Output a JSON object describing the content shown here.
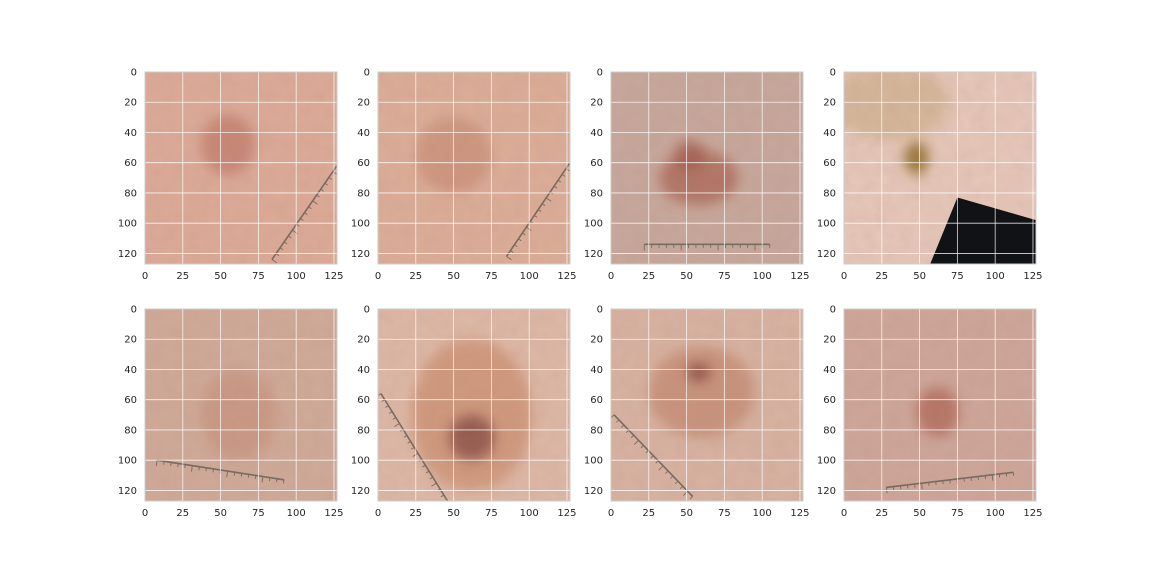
{
  "figure": {
    "grid": true,
    "layout": {
      "rows": 2,
      "cols": 4
    },
    "x_tick_labels": [
      "0",
      "25",
      "50",
      "75",
      "100",
      "125"
    ],
    "y_tick_labels": [
      "0",
      "20",
      "40",
      "60",
      "80",
      "100",
      "120"
    ],
    "x_tick_values": [
      0,
      25,
      50,
      75,
      100,
      125
    ],
    "y_tick_values": [
      0,
      20,
      40,
      60,
      80,
      100,
      120
    ],
    "image_extent": {
      "x": [
        0,
        127
      ],
      "y": [
        0,
        127
      ]
    },
    "colors": {
      "grid": "#ffffff",
      "tick_text": "#262626",
      "frame": "#cccccc"
    }
  },
  "panels": [
    {
      "name": "dermoscopy-image-1",
      "skin_color": "#dcab98",
      "lesions": [
        {
          "cx": 55,
          "cy": 48,
          "rx": 18,
          "ry": 20,
          "color": "#b86a58",
          "opacity": 0.55
        }
      ],
      "ruler": {
        "x1": 84,
        "y1": 124,
        "x2": 127,
        "y2": 62,
        "color": "#7a6a60"
      }
    },
    {
      "name": "dermoscopy-image-2",
      "skin_color": "#dcae98",
      "lesions": [
        {
          "cx": 50,
          "cy": 55,
          "rx": 25,
          "ry": 25,
          "color": "#bd7a62",
          "opacity": 0.45
        }
      ],
      "ruler": {
        "x1": 85,
        "y1": 122,
        "x2": 127,
        "y2": 60,
        "color": "#7a6a60"
      }
    },
    {
      "name": "dermoscopy-image-3",
      "skin_color": "#c7a89c",
      "lesions": [
        {
          "cx": 58,
          "cy": 70,
          "rx": 26,
          "ry": 18,
          "color": "#a85e4e",
          "opacity": 0.7
        },
        {
          "cx": 52,
          "cy": 55,
          "rx": 10,
          "ry": 10,
          "color": "#9a5040",
          "opacity": 0.6
        }
      ],
      "ruler": {
        "x1": 22,
        "y1": 114,
        "x2": 105,
        "y2": 114,
        "color": "#7a6a60"
      }
    },
    {
      "name": "dermoscopy-image-4",
      "skin_color": "#e6c8bb",
      "lesions": [
        {
          "cx": 48,
          "cy": 57,
          "rx": 8,
          "ry": 11,
          "color": "#8a6a20",
          "opacity": 0.85
        },
        {
          "cx": 30,
          "cy": 20,
          "rx": 40,
          "ry": 25,
          "color": "#b89a60",
          "opacity": 0.35
        }
      ],
      "black_corner": [
        [
          75,
          83
        ],
        [
          127,
          98
        ],
        [
          127,
          127
        ],
        [
          57,
          127
        ]
      ],
      "ruler": null
    },
    {
      "name": "dermoscopy-image-5",
      "skin_color": "#d0aa98",
      "lesions": [
        {
          "cx": 62,
          "cy": 70,
          "rx": 25,
          "ry": 30,
          "color": "#c0826a",
          "opacity": 0.4
        }
      ],
      "ruler": {
        "x1": 8,
        "y1": 100,
        "x2": 92,
        "y2": 113,
        "color": "#7a6a60"
      }
    },
    {
      "name": "dermoscopy-image-6",
      "skin_color": "#deb9a7",
      "lesions": [
        {
          "cx": 62,
          "cy": 70,
          "rx": 40,
          "ry": 50,
          "color": "#c27a55",
          "opacity": 0.5
        },
        {
          "cx": 62,
          "cy": 85,
          "rx": 15,
          "ry": 15,
          "color": "#7a3f3a",
          "opacity": 0.7
        }
      ],
      "ruler": {
        "x1": 2,
        "y1": 56,
        "x2": 46,
        "y2": 127,
        "color": "#7a6a60"
      }
    },
    {
      "name": "dermoscopy-image-7",
      "skin_color": "#d8b3a2",
      "lesions": [
        {
          "cx": 60,
          "cy": 55,
          "rx": 35,
          "ry": 30,
          "color": "#b97456",
          "opacity": 0.5
        },
        {
          "cx": 58,
          "cy": 42,
          "rx": 8,
          "ry": 6,
          "color": "#7a3a30",
          "opacity": 0.7
        }
      ],
      "ruler": {
        "x1": 2,
        "y1": 70,
        "x2": 54,
        "y2": 124,
        "color": "#7a6a60"
      }
    },
    {
      "name": "dermoscopy-image-8",
      "skin_color": "#cea69a",
      "lesions": [
        {
          "cx": 62,
          "cy": 68,
          "rx": 14,
          "ry": 16,
          "color": "#a85a48",
          "opacity": 0.65
        }
      ],
      "ruler": {
        "x1": 28,
        "y1": 118,
        "x2": 112,
        "y2": 108,
        "color": "#7a6a60"
      }
    }
  ]
}
